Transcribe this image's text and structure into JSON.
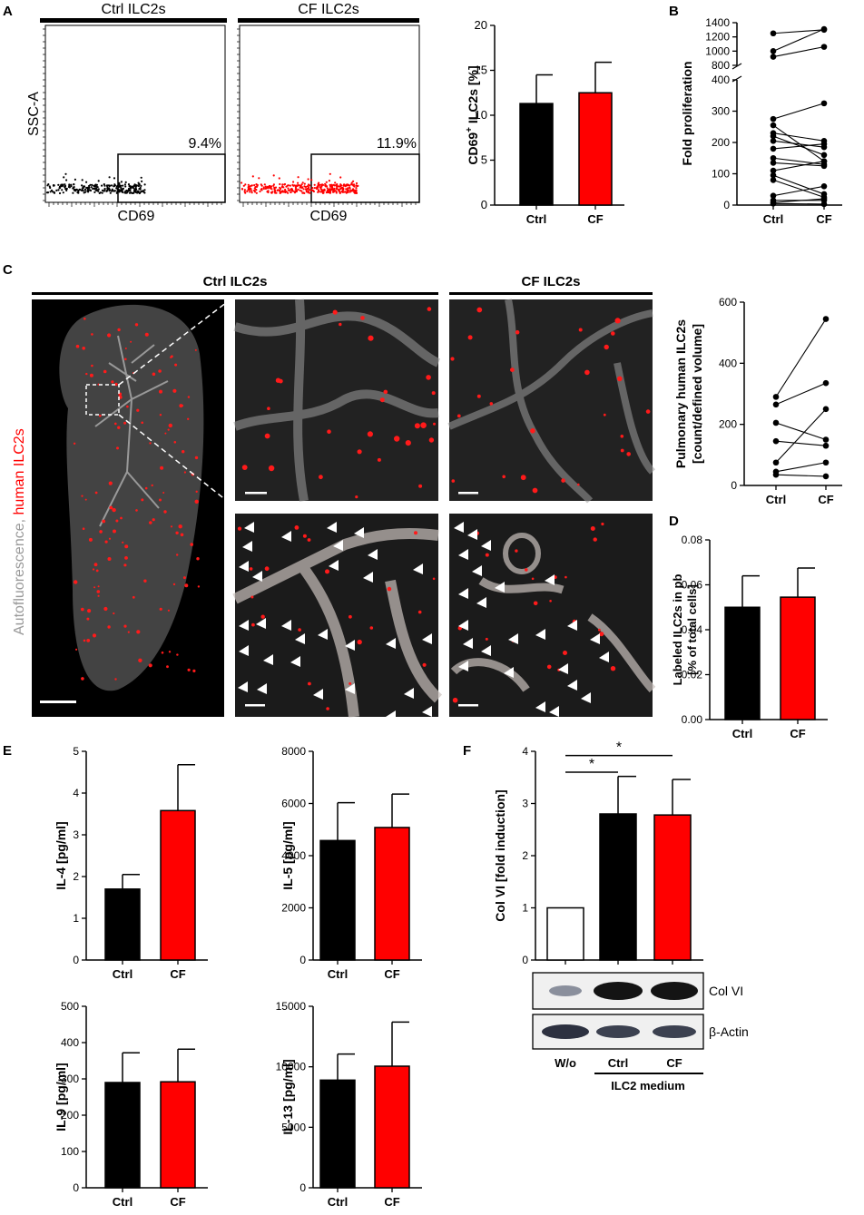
{
  "panel_labels": {
    "a": "A",
    "b": "B",
    "c": "C",
    "d": "D",
    "e": "E",
    "f": "F"
  },
  "flow": {
    "ctrl_title": "Ctrl ILC2s",
    "cf_title": "CF ILC2s",
    "ylabel": "SSC-A",
    "xlabel": "CD69",
    "ctrl_gate": "9.4%",
    "cf_gate": "11.9%",
    "colors": {
      "ctrl": "#000000",
      "cf": "#ff0000"
    }
  },
  "imaging": {
    "ctrl_title": "Ctrl ILC2s",
    "cf_title": "CF ILC2s",
    "side_label_gray": "Autofluorescence, ",
    "side_label_red": "human ILC2s"
  },
  "western": {
    "bands": [
      "Col VI",
      "β-Actin"
    ],
    "lanes": [
      "W/o",
      "Ctrl",
      "CF"
    ],
    "group_label": "ILC2 medium"
  },
  "chart_data": [
    {
      "id": "A",
      "type": "bar",
      "title": "",
      "ylabel_main": "CD69",
      "ylabel_sup": "+",
      "ylabel_rest": " ILC2s [%]",
      "categories": [
        "Ctrl",
        "CF"
      ],
      "values": [
        11.3,
        12.5
      ],
      "errors": [
        3.2,
        3.4
      ],
      "colors": [
        "#000000",
        "#ff0000"
      ],
      "ylim": [
        0,
        20
      ],
      "yticks": [
        "0",
        "5",
        "10",
        "15",
        "20"
      ]
    },
    {
      "id": "B",
      "type": "scatter",
      "title": "",
      "ylabel": "Fold proliferation",
      "categories": [
        "Ctrl",
        "CF"
      ],
      "yticks_low": [
        "0",
        "100",
        "200",
        "300",
        "400"
      ],
      "yticks_high": [
        "800",
        "1000",
        "1200",
        "1400"
      ],
      "pairs": [
        [
          1250,
          1300
        ],
        [
          1000,
          1310
        ],
        [
          920,
          1060
        ],
        [
          275,
          325
        ],
        [
          255,
          140
        ],
        [
          230,
          205
        ],
        [
          220,
          160
        ],
        [
          205,
          185
        ],
        [
          180,
          195
        ],
        [
          150,
          130
        ],
        [
          135,
          125
        ],
        [
          110,
          140
        ],
        [
          95,
          35
        ],
        [
          80,
          25
        ],
        [
          30,
          60
        ],
        [
          15,
          15
        ],
        [
          8,
          20
        ],
        [
          5,
          3
        ]
      ]
    },
    {
      "id": "C",
      "type": "scatter",
      "title": "",
      "ylabel_1": "Pulmonary human  ILC2s",
      "ylabel_2": "[count/defined volume]",
      "categories": [
        "Ctrl",
        "CF"
      ],
      "ylim": [
        0,
        600
      ],
      "yticks": [
        "0",
        "200",
        "400",
        "600"
      ],
      "pairs": [
        [
          290,
          545
        ],
        [
          265,
          335
        ],
        [
          205,
          150
        ],
        [
          145,
          130
        ],
        [
          75,
          250
        ],
        [
          45,
          75
        ],
        [
          35,
          30
        ]
      ]
    },
    {
      "id": "D",
      "type": "bar",
      "title": "",
      "ylabel_1": "Labeled ILC2s in pb",
      "ylabel_2": "[% of total cells]",
      "categories": [
        "Ctrl",
        "CF"
      ],
      "values": [
        0.05,
        0.0545
      ],
      "errors": [
        0.014,
        0.013
      ],
      "colors": [
        "#000000",
        "#ff0000"
      ],
      "ylim": [
        0,
        0.08
      ],
      "yticks": [
        "0.00",
        "0.02",
        "0.04",
        "0.06",
        "0.08"
      ]
    },
    {
      "id": "E1",
      "type": "bar",
      "title": "",
      "ylabel": "IL-4 [pg/ml]",
      "categories": [
        "Ctrl",
        "CF"
      ],
      "values": [
        1.7,
        3.58
      ],
      "errors": [
        0.35,
        1.1
      ],
      "colors": [
        "#000000",
        "#ff0000"
      ],
      "ylim": [
        0,
        5
      ],
      "yticks": [
        "0",
        "1",
        "2",
        "3",
        "4",
        "5"
      ]
    },
    {
      "id": "E2",
      "type": "bar",
      "title": "",
      "ylabel": "IL-5 [pg/ml]",
      "categories": [
        "Ctrl",
        "CF"
      ],
      "values": [
        4580,
        5080
      ],
      "errors": [
        1450,
        1280
      ],
      "colors": [
        "#000000",
        "#ff0000"
      ],
      "ylim": [
        0,
        8000
      ],
      "yticks": [
        "0",
        "2000",
        "4000",
        "6000",
        "8000"
      ]
    },
    {
      "id": "E3",
      "type": "bar",
      "title": "",
      "ylabel": "IL-9 [pg/ml]",
      "categories": [
        "Ctrl",
        "CF"
      ],
      "values": [
        290,
        292
      ],
      "errors": [
        82,
        90
      ],
      "colors": [
        "#000000",
        "#ff0000"
      ],
      "ylim": [
        0,
        500
      ],
      "yticks": [
        "0",
        "100",
        "200",
        "300",
        "400",
        "500"
      ]
    },
    {
      "id": "E4",
      "type": "bar",
      "title": "",
      "ylabel": "IL-13 [pg/ml]",
      "categories": [
        "Ctrl",
        "CF"
      ],
      "values": [
        8900,
        10050
      ],
      "errors": [
        2150,
        3650
      ],
      "colors": [
        "#000000",
        "#ff0000"
      ],
      "ylim": [
        0,
        15000
      ],
      "yticks": [
        "0",
        "5000",
        "10000",
        "15000"
      ]
    },
    {
      "id": "F",
      "type": "bar",
      "title": "",
      "ylabel": "Col VI [fold induction]",
      "categories": [
        "",
        "",
        ""
      ],
      "values": [
        1.0,
        2.8,
        2.78
      ],
      "errors": [
        0,
        0.72,
        0.68
      ],
      "colors": [
        "#ffffff",
        "#000000",
        "#ff0000"
      ],
      "ylim": [
        0,
        4
      ],
      "yticks": [
        "0",
        "1",
        "2",
        "3",
        "4"
      ],
      "significance": [
        "*",
        "*"
      ]
    }
  ]
}
